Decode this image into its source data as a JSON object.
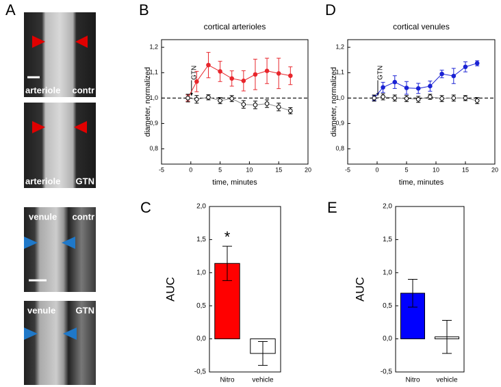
{
  "panel_a": {
    "label": "A",
    "images": [
      {
        "vessel": "arteriole",
        "condition": "contr"
      },
      {
        "vessel": "arteriole",
        "condition": "GTN"
      },
      {
        "vessel": "venule",
        "condition": "contr"
      },
      {
        "vessel": "venule",
        "condition": "GTN"
      }
    ]
  },
  "chart_data": [
    {
      "type": "line",
      "panel_label": "B",
      "title": "cortical arterioles",
      "x_label": "time, minutes",
      "y_label": "diameter, normalized",
      "xlim": [
        -5,
        20
      ],
      "xticks": [
        -5,
        0,
        5,
        10,
        15,
        20
      ],
      "ylim": [
        0.74,
        1.23
      ],
      "yticks": [
        {
          "value": 0.8,
          "label": "0,8"
        },
        {
          "value": 0.9,
          "label": "0,9"
        },
        {
          "value": 1.0,
          "label": "1,0"
        },
        {
          "value": 1.1,
          "label": "1,1"
        },
        {
          "value": 1.2,
          "label": "1,2"
        }
      ],
      "ref_line": 1.0,
      "annotation": {
        "text": "GTN",
        "x": 0
      },
      "x": [
        -0.5,
        1,
        3,
        5,
        7,
        9,
        11,
        13,
        15,
        17
      ],
      "series": [
        {
          "color": "#e8262c",
          "marker": "filled",
          "values": [
            1.0,
            1.065,
            1.13,
            1.105,
            1.077,
            1.068,
            1.093,
            1.107,
            1.097,
            1.088
          ],
          "errors": [
            0.012,
            0.04,
            0.05,
            0.04,
            0.03,
            0.04,
            0.06,
            0.05,
            0.06,
            0.035
          ]
        },
        {
          "color": "#000000",
          "marker": "open",
          "values": [
            1.0,
            0.995,
            1.003,
            0.99,
            0.998,
            0.975,
            0.973,
            0.978,
            0.965,
            0.95
          ],
          "errors": [
            0.015,
            0.015,
            0.01,
            0.012,
            0.012,
            0.015,
            0.015,
            0.015,
            0.015,
            0.012
          ]
        }
      ]
    },
    {
      "type": "bar",
      "panel_label": "C",
      "y_label": "AUC",
      "ylim": [
        -0.5,
        2.0
      ],
      "yticks": [
        {
          "value": -0.5,
          "label": "-0,5"
        },
        {
          "value": 0,
          "label": "0,0"
        },
        {
          "value": 0.5,
          "label": "0,5"
        },
        {
          "value": 1.0,
          "label": "1,0"
        },
        {
          "value": 1.5,
          "label": "1,5"
        },
        {
          "value": 2.0,
          "label": "2,0"
        }
      ],
      "categories": [
        "Nitro",
        "vehicle"
      ],
      "values": [
        1.14,
        -0.22
      ],
      "errors": [
        0.26,
        0.18
      ],
      "colors": [
        "#ff0000",
        "#ffffff"
      ],
      "value_annotations": [
        "*",
        null
      ]
    },
    {
      "type": "line",
      "panel_label": "D",
      "title": "cortical venules",
      "x_label": "time, minutes",
      "y_label": "diameter, normalized",
      "xlim": [
        -5,
        20
      ],
      "xticks": [
        -5,
        0,
        5,
        10,
        15,
        20
      ],
      "ylim": [
        0.74,
        1.23
      ],
      "yticks": [
        {
          "value": 0.8,
          "label": "0,8"
        },
        {
          "value": 0.9,
          "label": "0,9"
        },
        {
          "value": 1.0,
          "label": "1,0"
        },
        {
          "value": 1.1,
          "label": "1,1"
        },
        {
          "value": 1.2,
          "label": "1,2"
        }
      ],
      "ref_line": 1.0,
      "annotation": {
        "text": "GTN",
        "x": 0
      },
      "x": [
        -0.5,
        1,
        3,
        5,
        7,
        9,
        11,
        13,
        15,
        17
      ],
      "series": [
        {
          "color": "#1a22d4",
          "marker": "filled",
          "values": [
            1.0,
            1.042,
            1.063,
            1.04,
            1.038,
            1.047,
            1.095,
            1.087,
            1.123,
            1.137
          ],
          "errors": [
            0.01,
            0.02,
            0.025,
            0.025,
            0.02,
            0.02,
            0.015,
            0.03,
            0.02,
            0.01
          ]
        },
        {
          "color": "#000000",
          "marker": "open",
          "values": [
            1.0,
            1.005,
            1.0,
            0.998,
            0.995,
            1.005,
            0.998,
            1.0,
            1.0,
            0.99
          ],
          "errors": [
            0.012,
            0.012,
            0.012,
            0.012,
            0.012,
            0.01,
            0.012,
            0.012,
            0.01,
            0.012
          ]
        }
      ]
    },
    {
      "type": "bar",
      "panel_label": "E",
      "y_label": "AUC",
      "ylim": [
        -0.5,
        2.0
      ],
      "yticks": [
        {
          "value": -0.5,
          "label": "-0,5"
        },
        {
          "value": 0,
          "label": "0,0"
        },
        {
          "value": 0.5,
          "label": "0,5"
        },
        {
          "value": 1.0,
          "label": "1,0"
        },
        {
          "value": 1.5,
          "label": "1,5"
        },
        {
          "value": 2.0,
          "label": "2,0"
        }
      ],
      "categories": [
        "Nitro",
        "vehicle"
      ],
      "values": [
        0.69,
        0.03
      ],
      "errors": [
        0.21,
        0.25
      ],
      "colors": [
        "#0000ff",
        "#ffffff"
      ],
      "value_annotations": [
        null,
        null
      ]
    }
  ]
}
